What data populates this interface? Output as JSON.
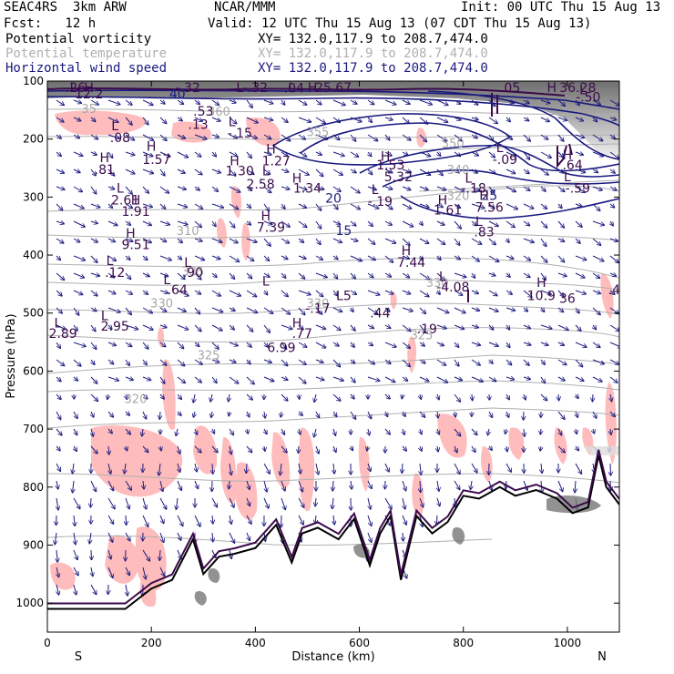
{
  "header": {
    "model": "SEAC4RS  3km ARW",
    "org": "NCAR/MMM",
    "init": "Init: 00 UTC Thu 15 Aug 13",
    "fcst": "Fcst:   12 h",
    "valid": "Valid: 12 UTC Thu 15 Aug 13 (07 CDT Thu 15 Aug 13)",
    "fields": [
      {
        "name": "Potential vorticity",
        "xy": "XY= 132.0,117.9 to 208.7,474.0",
        "color": "#000000"
      },
      {
        "name": "Potential temperature",
        "xy": "XY= 132.0,117.9 to 208.7,474.0",
        "color": "#b0b0b0"
      },
      {
        "name": "Horizontal wind speed",
        "xy": "XY= 132.0,117.9 to 208.7,474.0",
        "color": "#1a1a80"
      }
    ]
  },
  "chart_data": {
    "type": "cross-section",
    "xlabel": "Distance (km)",
    "ylabel": "Pressure (hPa)",
    "xlim": [
      0,
      1100
    ],
    "ylim": [
      1050,
      100
    ],
    "x_ticks": [
      0,
      200,
      400,
      600,
      800,
      1000
    ],
    "y_ticks": [
      100,
      200,
      300,
      400,
      500,
      600,
      700,
      800,
      900,
      1000
    ],
    "x_end_labels": {
      "left": "S",
      "right": "N"
    },
    "colors": {
      "shading": "#ffbcbc",
      "pv": "#3a0a4a",
      "theta": "#a8a8a8",
      "wind": "#1a1a80",
      "terrain": "#000000"
    },
    "terrain": [
      [
        0,
        1010
      ],
      [
        150,
        1010
      ],
      [
        200,
        975
      ],
      [
        240,
        960
      ],
      [
        280,
        890
      ],
      [
        300,
        950
      ],
      [
        330,
        920
      ],
      [
        360,
        915
      ],
      [
        400,
        905
      ],
      [
        440,
        865
      ],
      [
        470,
        930
      ],
      [
        490,
        880
      ],
      [
        520,
        870
      ],
      [
        560,
        890
      ],
      [
        590,
        855
      ],
      [
        620,
        935
      ],
      [
        640,
        880
      ],
      [
        660,
        850
      ],
      [
        680,
        960
      ],
      [
        710,
        850
      ],
      [
        740,
        880
      ],
      [
        770,
        860
      ],
      [
        800,
        815
      ],
      [
        830,
        820
      ],
      [
        870,
        800
      ],
      [
        900,
        815
      ],
      [
        940,
        805
      ],
      [
        980,
        820
      ],
      [
        1010,
        845
      ],
      [
        1040,
        835
      ],
      [
        1060,
        745
      ],
      [
        1075,
        800
      ],
      [
        1100,
        830
      ]
    ],
    "pv_labels": [
      {
        "x": 50,
        "p": 210,
        "text": "-.26"
      },
      {
        "x": 50,
        "p": 170,
        "text": "L"
      },
      {
        "x": 80,
        "p": 260,
        "text": "12.2"
      },
      {
        "x": 80,
        "p": 220,
        "text": "H"
      },
      {
        "x": 270,
        "p": 205,
        "text": "-.32"
      },
      {
        "x": 400,
        "p": 200,
        "text": "-.32"
      },
      {
        "x": 370,
        "p": 175,
        "text": "L"
      },
      {
        "x": 470,
        "p": 240,
        "text": "-.04"
      },
      {
        "x": 470,
        "p": 200,
        "text": "L"
      },
      {
        "x": 510,
        "p": 205,
        "text": "H"
      },
      {
        "x": 550,
        "p": 235,
        "text": "25.67"
      },
      {
        "x": 890,
        "p": 165,
        "text": ".05"
      },
      {
        "x": 970,
        "p": 165,
        "text": "H"
      },
      {
        "x": 1020,
        "p": 200,
        "text": "36.28"
      },
      {
        "x": 1040,
        "p": 270,
        "text": "-.50"
      },
      {
        "x": 1030,
        "p": 245,
        "text": "L"
      },
      {
        "x": 300,
        "p": 320,
        "text": ".53"
      },
      {
        "x": 290,
        "p": 365,
        "text": ".13"
      },
      {
        "x": 140,
        "p": 410,
        "text": ".08"
      },
      {
        "x": 130,
        "p": 370,
        "text": "L"
      },
      {
        "x": 370,
        "p": 395,
        "text": "-.15"
      },
      {
        "x": 355,
        "p": 355,
        "text": "L"
      },
      {
        "x": 210,
        "p": 485,
        "text": "1.57"
      },
      {
        "x": 200,
        "p": 440,
        "text": "H"
      },
      {
        "x": 110,
        "p": 520,
        "text": ".81"
      },
      {
        "x": 110,
        "p": 480,
        "text": "H"
      },
      {
        "x": 370,
        "p": 525,
        "text": "1.30"
      },
      {
        "x": 360,
        "p": 490,
        "text": "H"
      },
      {
        "x": 440,
        "p": 490,
        "text": "1.27"
      },
      {
        "x": 430,
        "p": 450,
        "text": "H"
      },
      {
        "x": 410,
        "p": 570,
        "text": "2.58"
      },
      {
        "x": 420,
        "p": 525,
        "text": "L"
      },
      {
        "x": 500,
        "p": 585,
        "text": "1.34"
      },
      {
        "x": 480,
        "p": 550,
        "text": "H"
      },
      {
        "x": 660,
        "p": 505,
        "text": "1.53"
      },
      {
        "x": 650,
        "p": 475,
        "text": "H"
      },
      {
        "x": 675,
        "p": 545,
        "text": "5.32"
      },
      {
        "x": 880,
        "p": 485,
        "text": "-.09"
      },
      {
        "x": 870,
        "p": 445,
        "text": "L"
      },
      {
        "x": 1010,
        "p": 505,
        "text": ".64"
      },
      {
        "x": 1000,
        "p": 470,
        "text": "H"
      },
      {
        "x": 820,
        "p": 585,
        "text": "-.18"
      },
      {
        "x": 810,
        "p": 550,
        "text": "L"
      },
      {
        "x": 1020,
        "p": 585,
        "text": "-.59"
      },
      {
        "x": 1000,
        "p": 545,
        "text": "L"
      },
      {
        "x": 640,
        "p": 630,
        "text": "-.19"
      },
      {
        "x": 630,
        "p": 590,
        "text": "L"
      },
      {
        "x": 150,
        "p": 625,
        "text": "2.61"
      },
      {
        "x": 140,
        "p": 585,
        "text": "L"
      },
      {
        "x": 170,
        "p": 665,
        "text": "1.91"
      },
      {
        "x": 170,
        "p": 625,
        "text": "H"
      },
      {
        "x": 770,
        "p": 660,
        "text": "1.61"
      },
      {
        "x": 760,
        "p": 625,
        "text": "H"
      },
      {
        "x": 850,
        "p": 650,
        "text": "7.56"
      },
      {
        "x": 840,
        "p": 610,
        "text": "H"
      },
      {
        "x": 430,
        "p": 720,
        "text": "7.39"
      },
      {
        "x": 420,
        "p": 680,
        "text": "H"
      },
      {
        "x": 840,
        "p": 735,
        "text": ".83"
      },
      {
        "x": 830,
        "p": 700,
        "text": "L"
      },
      {
        "x": 170,
        "p": 780,
        "text": "9.51"
      },
      {
        "x": 160,
        "p": 740,
        "text": "H"
      },
      {
        "x": 700,
        "p": 840,
        "text": "7.44"
      },
      {
        "x": 690,
        "p": 800,
        "text": "H"
      },
      {
        "x": 130,
        "p": 875,
        "text": ".12"
      },
      {
        "x": 120,
        "p": 835,
        "text": "L"
      },
      {
        "x": 280,
        "p": 875,
        "text": ".90"
      },
      {
        "x": 270,
        "p": 840,
        "text": "L"
      },
      {
        "x": 250,
        "p": 935,
        "text": ".64"
      },
      {
        "x": 230,
        "p": 900,
        "text": "L"
      },
      {
        "x": 420,
        "p": 905,
        "text": "L"
      },
      {
        "x": 570,
        "p": 955,
        "text": "L5"
      },
      {
        "x": 780,
        "p": 925,
        "text": "-4.08"
      },
      {
        "x": 760,
        "p": 890,
        "text": "L"
      },
      {
        "x": 950,
        "p": 910,
        "text": "H"
      },
      {
        "x": 950,
        "p": 955,
        "text": "10.9"
      },
      {
        "x": 1000,
        "p": 965,
        "text": "36"
      },
      {
        "x": 1090,
        "p": 935,
        "text": ".4"
      },
      {
        "x": 520,
        "p": 1000,
        "text": "-.17"
      },
      {
        "x": 640,
        "p": 1015,
        "text": ".44"
      },
      {
        "x": 730,
        "p": 1070,
        "text": ".19"
      },
      {
        "x": 130,
        "p": 1060,
        "text": "2.95"
      },
      {
        "x": 110,
        "p": 1025,
        "text": "L"
      },
      {
        "x": 30,
        "p": 1085,
        "text": "2.89"
      },
      {
        "x": 20,
        "p": 1050,
        "text": "L"
      },
      {
        "x": 480,
        "p": 1050,
        "text": "H"
      },
      {
        "x": 490,
        "p": 1085,
        "text": ".77"
      },
      {
        "x": 450,
        "p": 1135,
        "text": "6.99"
      }
    ],
    "wind_labels": [
      {
        "x": 250,
        "p": 130,
        "text": "40"
      },
      {
        "x": 550,
        "p": 310,
        "text": "20"
      },
      {
        "x": 570,
        "p": 365,
        "text": "15"
      },
      {
        "x": 850,
        "p": 305,
        "text": "25"
      }
    ],
    "theta_labels": [
      {
        "x": 80,
        "p": 155,
        "text": "35"
      },
      {
        "x": 330,
        "p": 160,
        "text": "360"
      },
      {
        "x": 520,
        "p": 195,
        "text": "355"
      },
      {
        "x": 780,
        "p": 215,
        "text": "350"
      },
      {
        "x": 790,
        "p": 260,
        "text": "340"
      },
      {
        "x": 790,
        "p": 305,
        "text": "320"
      },
      {
        "x": 270,
        "p": 365,
        "text": "310"
      },
      {
        "x": 280,
        "p": 435,
        "text": "335"
      },
      {
        "x": 220,
        "p": 490,
        "text": "330"
      },
      {
        "x": 520,
        "p": 490,
        "text": "330"
      },
      {
        "x": 750,
        "p": 455,
        "text": "330"
      },
      {
        "x": 310,
        "p": 580,
        "text": "325"
      },
      {
        "x": 170,
        "p": 655,
        "text": "320"
      },
      {
        "x": 720,
        "p": 545,
        "text": "325"
      }
    ]
  }
}
